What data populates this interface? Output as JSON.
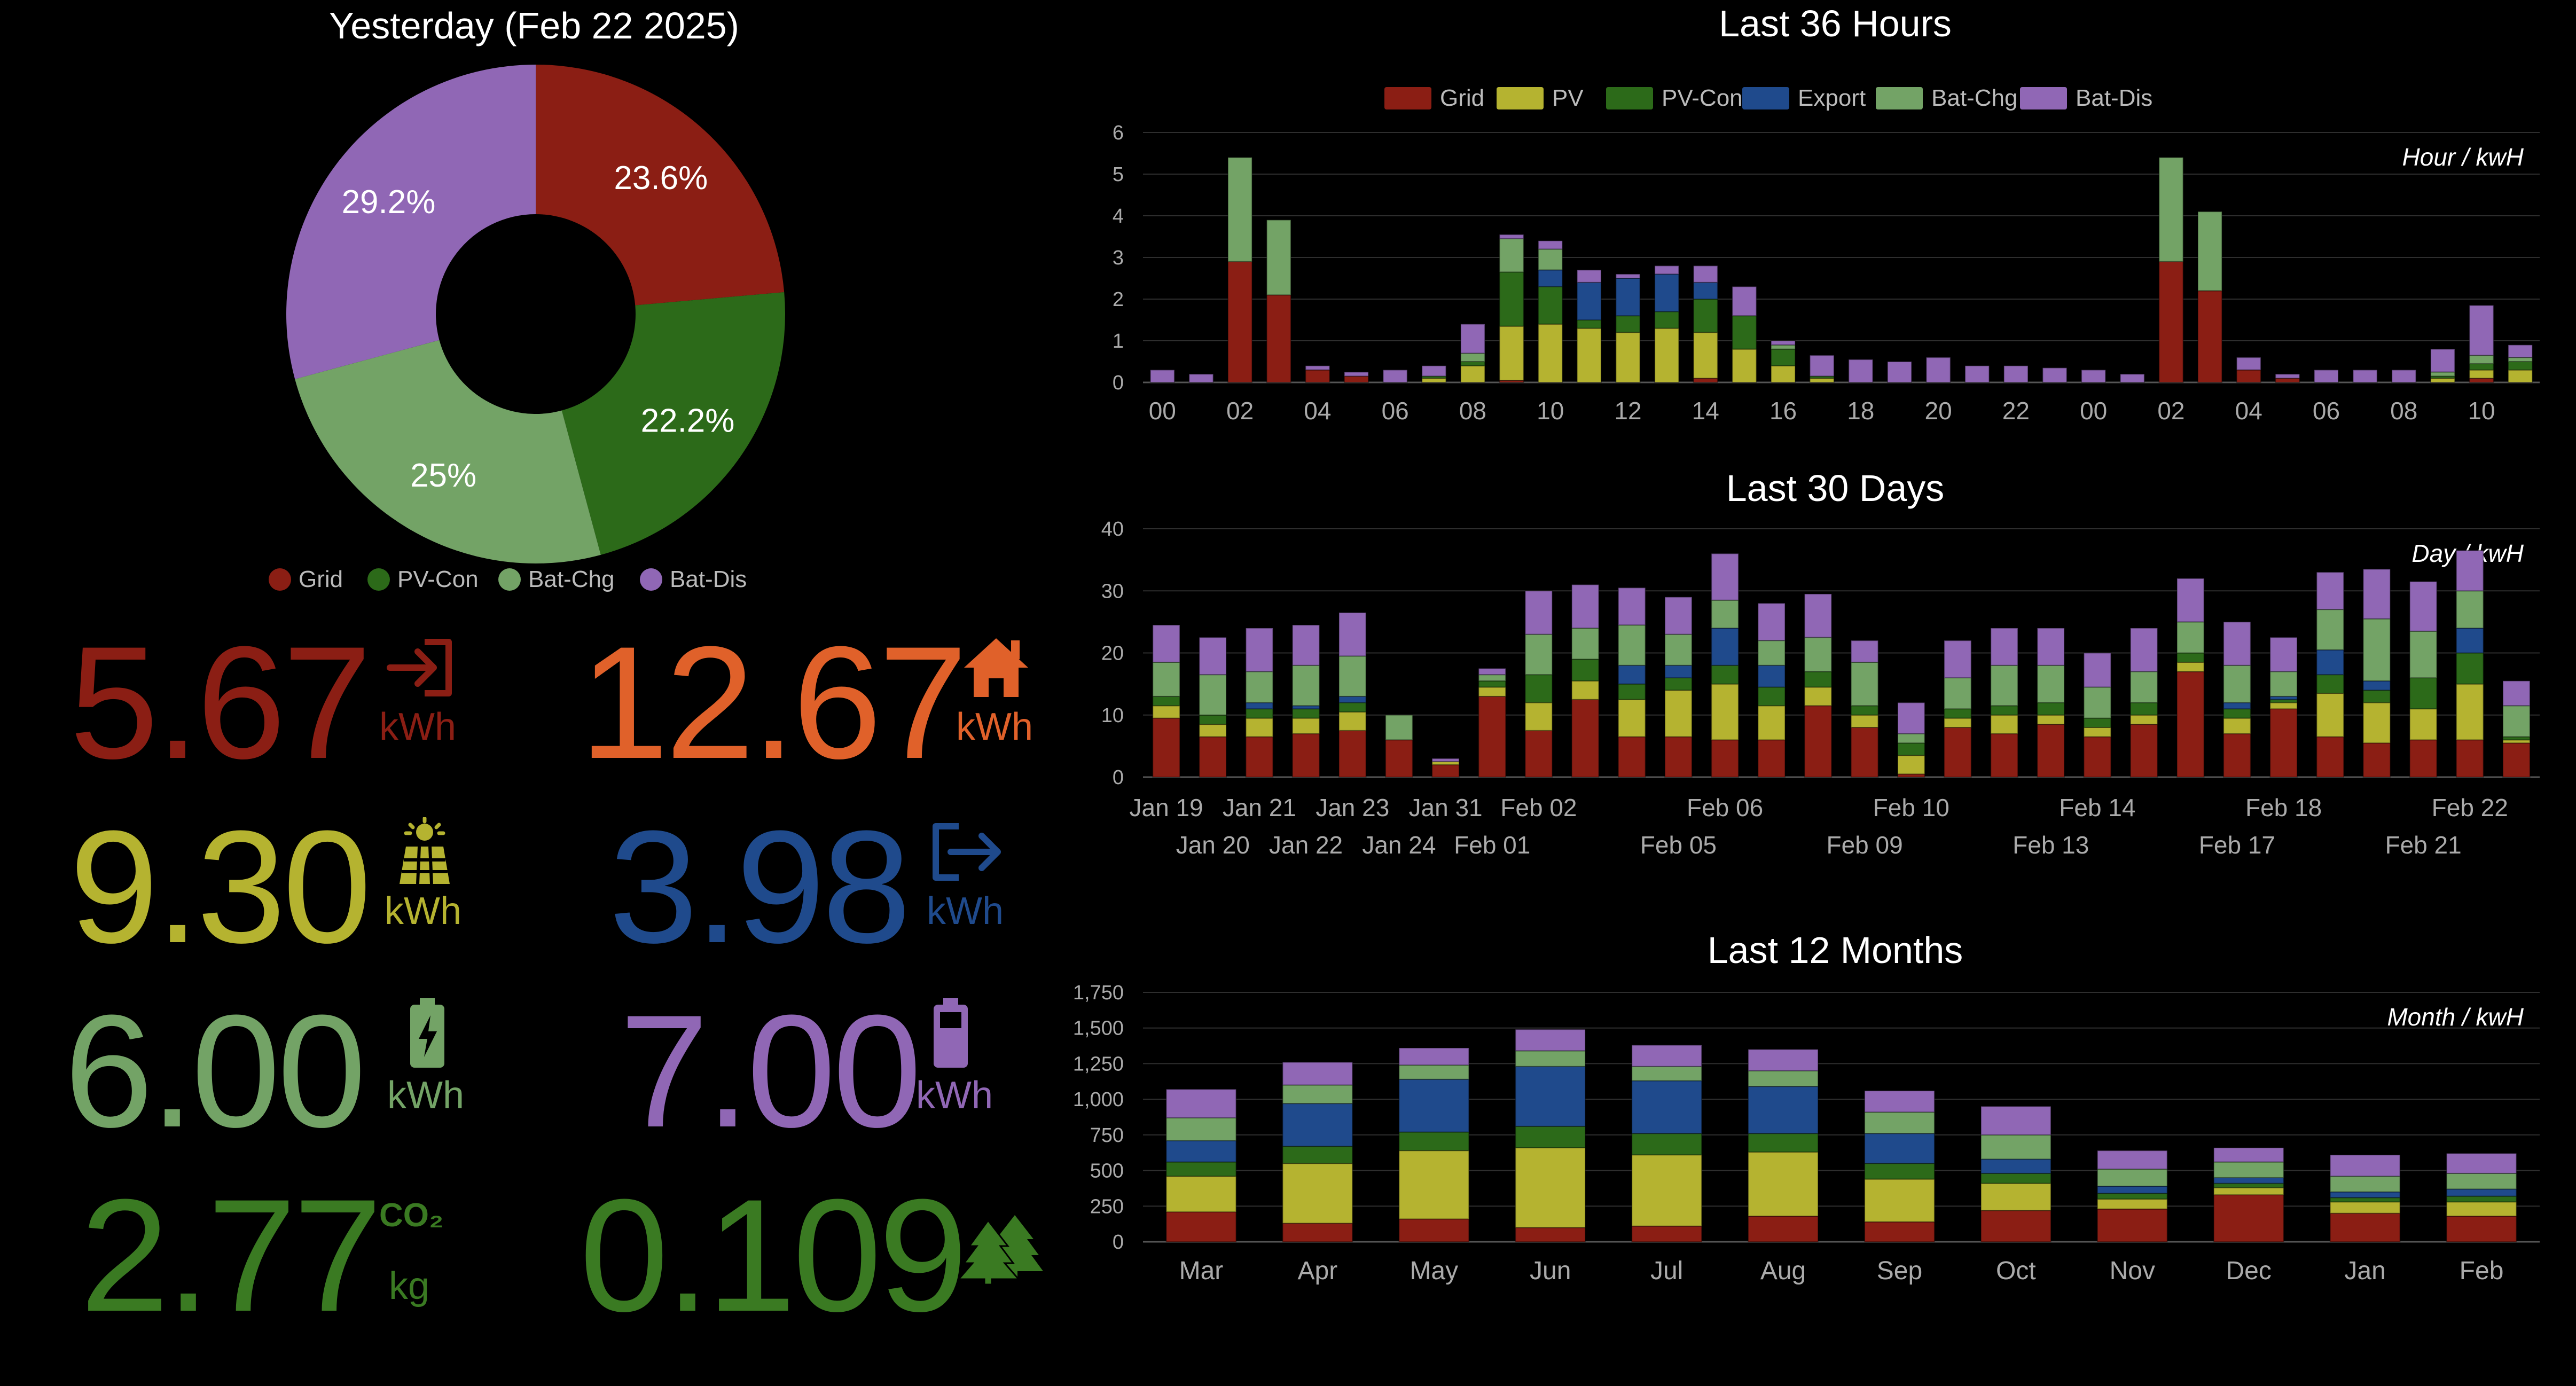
{
  "colors": {
    "grid": "#8B1E14",
    "pv": "#B5B330",
    "pv_con": "#2C6A19",
    "export": "#1F4A8C",
    "bat_chg": "#73A366",
    "bat_dis": "#9067B5",
    "house": "#E0612A",
    "co2": "#3A7A22"
  },
  "donut": {
    "title": "Yesterday (Feb 22 2025)",
    "slices": [
      {
        "name": "Grid",
        "value": 23.6,
        "label": "23.6%",
        "color": "#8B1E14"
      },
      {
        "name": "PV-Con",
        "value": 22.2,
        "label": "22.2%",
        "color": "#2C6A19"
      },
      {
        "name": "Bat-Chg",
        "value": 25.0,
        "label": "25%",
        "color": "#73A366"
      },
      {
        "name": "Bat-Dis",
        "value": 29.2,
        "label": "29.2%",
        "color": "#9067B5"
      }
    ],
    "legend": [
      "Grid",
      "PV-Con",
      "Bat-Chg",
      "Bat-Dis"
    ]
  },
  "stats": {
    "grid": {
      "value": "5.67",
      "unit": "kWh",
      "icon": "grid-import-icon"
    },
    "house": {
      "value": "12.67",
      "unit": "kWh",
      "icon": "house-icon"
    },
    "pv": {
      "value": "9.30",
      "unit": "kWh",
      "icon": "solar-panel-icon"
    },
    "export": {
      "value": "3.98",
      "unit": "kWh",
      "icon": "grid-export-icon"
    },
    "bat_chg": {
      "value": "6.00",
      "unit": "kWh",
      "icon": "battery-charging-icon"
    },
    "bat_dis": {
      "value": "7.00",
      "unit": "kWh",
      "icon": "battery-icon"
    },
    "co2": {
      "value": "2.77",
      "unit": "kg",
      "icon": "co2-icon",
      "icon_text": "CO₂"
    },
    "trees": {
      "value": "0.109",
      "icon": "trees-icon"
    }
  },
  "chart_data": [
    {
      "type": "bar",
      "stacked": true,
      "title": "Last 36 Hours",
      "annotation": "Hour / kwH",
      "legend": [
        "Grid",
        "PV",
        "PV-Con",
        "Export",
        "Bat-Chg",
        "Bat-Dis"
      ],
      "legend_position": "top",
      "ylim": [
        0,
        6
      ],
      "yticks": [
        "0",
        "1",
        "2",
        "3",
        "4",
        "5",
        "6"
      ],
      "tick_labels": [
        "00",
        "02",
        "04",
        "06",
        "08",
        "10",
        "12",
        "14",
        "16",
        "18",
        "20",
        "22",
        "00",
        "02",
        "04",
        "06",
        "08",
        "10"
      ],
      "categories": [
        "00",
        "01",
        "02",
        "03",
        "04",
        "05",
        "06",
        "07",
        "08",
        "09",
        "10",
        "11",
        "12",
        "13",
        "14",
        "15",
        "16",
        "17",
        "18",
        "19",
        "20",
        "21",
        "22",
        "23",
        "00",
        "01",
        "02",
        "03",
        "04",
        "05",
        "06",
        "07",
        "08",
        "09",
        "10",
        "11"
      ],
      "series": [
        {
          "name": "Grid",
          "values": [
            0,
            0,
            2.9,
            2.1,
            0.3,
            0.15,
            0,
            0,
            0,
            0.05,
            0,
            0,
            0,
            0,
            0.1,
            0,
            0,
            0,
            0,
            0,
            0,
            0,
            0,
            0,
            0,
            0,
            2.9,
            2.2,
            0.3,
            0.1,
            0,
            0,
            0,
            0,
            0.1,
            0
          ]
        },
        {
          "name": "PV",
          "values": [
            0,
            0,
            0,
            0,
            0,
            0,
            0,
            0.1,
            0.4,
            1.3,
            1.4,
            1.3,
            1.2,
            1.3,
            1.1,
            0.8,
            0.4,
            0.1,
            0,
            0,
            0,
            0,
            0,
            0,
            0,
            0,
            0,
            0,
            0,
            0,
            0,
            0,
            0,
            0.1,
            0.2,
            0.3
          ]
        },
        {
          "name": "PV-Con",
          "values": [
            0,
            0,
            0,
            0,
            0,
            0,
            0,
            0.05,
            0.1,
            1.3,
            0.9,
            0.2,
            0.4,
            0.4,
            0.8,
            0.8,
            0.4,
            0.05,
            0,
            0,
            0,
            0,
            0,
            0,
            0,
            0,
            0,
            0,
            0,
            0,
            0,
            0,
            0,
            0.05,
            0.15,
            0.2
          ]
        },
        {
          "name": "Export",
          "values": [
            0,
            0,
            0,
            0,
            0,
            0,
            0,
            0,
            0,
            0,
            0.4,
            0.9,
            0.9,
            0.9,
            0.4,
            0,
            0,
            0,
            0,
            0,
            0,
            0,
            0,
            0,
            0,
            0,
            0,
            0,
            0,
            0,
            0,
            0,
            0,
            0,
            0,
            0
          ]
        },
        {
          "name": "Bat-Chg",
          "values": [
            0,
            0,
            2.5,
            1.8,
            0,
            0,
            0,
            0,
            0.2,
            0.8,
            0.5,
            0,
            0,
            0,
            0,
            0,
            0.1,
            0,
            0,
            0,
            0,
            0,
            0,
            0,
            0,
            0,
            2.5,
            1.9,
            0,
            0,
            0,
            0,
            0,
            0.1,
            0.2,
            0.1
          ]
        },
        {
          "name": "Bat-Dis",
          "values": [
            0.3,
            0.2,
            0,
            0,
            0.1,
            0.1,
            0.3,
            0.25,
            0.7,
            0.1,
            0.2,
            0.3,
            0.1,
            0.2,
            0.4,
            0.7,
            0.1,
            0.5,
            0.55,
            0.5,
            0.6,
            0.4,
            0.4,
            0.35,
            0.3,
            0.2,
            0,
            0,
            0.3,
            0.1,
            0.3,
            0.3,
            0.3,
            0.55,
            1.2,
            0.3
          ]
        }
      ]
    },
    {
      "type": "bar",
      "stacked": true,
      "title": "Last 30 Days",
      "annotation": "Day / kwH",
      "ylim": [
        0,
        40
      ],
      "yticks": [
        "0",
        "10",
        "20",
        "30",
        "40"
      ],
      "tick_labels_row1": [
        "Jan 19",
        "Jan 21",
        "Jan 23",
        "Jan 31",
        "Feb 02",
        "Feb 06",
        "Feb 10",
        "Feb 14",
        "Feb 18",
        "Feb 22"
      ],
      "tick_labels_row2": [
        "Jan 20",
        "Jan 22",
        "Jan 24",
        "Feb 01",
        "Feb 05",
        "Feb 09",
        "Feb 13",
        "Feb 17",
        "Feb 21"
      ],
      "categories": [
        "Jan 19",
        "Jan 20",
        "Jan 21",
        "Jan 22",
        "Jan 23",
        "Jan 24",
        "Jan 31",
        "Feb 01",
        "Feb 02",
        "Feb 03",
        "Feb 04",
        "Feb 05",
        "Feb 06",
        "Feb 07",
        "Feb 08",
        "Feb 09",
        "Feb 10",
        "Feb 11",
        "Feb 12",
        "Feb 13",
        "Feb 14",
        "Feb 15",
        "Feb 16",
        "Feb 17",
        "Feb 18",
        "Feb 19",
        "Feb 20",
        "Feb 21",
        "Feb 22",
        "Feb 23"
      ],
      "series": [
        {
          "name": "Grid",
          "values": [
            9.5,
            6.5,
            6.5,
            7,
            7.5,
            6,
            2,
            13,
            7.5,
            12.5,
            6.5,
            6.5,
            6,
            6,
            11.5,
            8,
            0.5,
            8,
            7,
            8.5,
            6.5,
            8.5,
            17,
            7,
            11,
            6.5,
            5.5,
            6,
            6,
            5.5
          ]
        },
        {
          "name": "PV",
          "values": [
            2,
            2,
            3,
            2.5,
            3,
            0,
            0.5,
            1.5,
            4.5,
            3,
            6,
            7.5,
            9,
            5.5,
            3,
            2,
            3,
            1.5,
            3,
            1.5,
            1.5,
            1.5,
            1.5,
            2.5,
            1,
            7,
            6.5,
            5,
            9,
            0.5
          ]
        },
        {
          "name": "PV-Con",
          "values": [
            1.5,
            1.5,
            1.5,
            1.5,
            1.5,
            0,
            0,
            1,
            4.5,
            3.5,
            2.5,
            2,
            3,
            3,
            2.5,
            1.5,
            2,
            1.5,
            1.5,
            2,
            1.5,
            2,
            1.5,
            1.5,
            0.5,
            3,
            2,
            5,
            5,
            0.5
          ]
        },
        {
          "name": "Export",
          "values": [
            0,
            0,
            1,
            0.5,
            1,
            0,
            0,
            0,
            0,
            0,
            3,
            2,
            6,
            3.5,
            0,
            0,
            0,
            0,
            0,
            0,
            0,
            0,
            0,
            1,
            0.5,
            4,
            1.5,
            0,
            4,
            0
          ]
        },
        {
          "name": "Bat-Chg",
          "values": [
            5.5,
            6.5,
            5,
            6.5,
            6.5,
            4,
            0,
            1,
            6.5,
            5,
            6.5,
            5,
            4.5,
            4,
            5.5,
            7,
            1.5,
            5,
            6.5,
            6,
            5,
            5,
            5,
            6,
            4,
            6.5,
            10,
            7.5,
            6,
            5
          ]
        },
        {
          "name": "Bat-Dis",
          "values": [
            6,
            6,
            7,
            6.5,
            7,
            0,
            0.5,
            1,
            7,
            7,
            6,
            6,
            7.5,
            6,
            7,
            3.5,
            5,
            6,
            6,
            6,
            5.5,
            7,
            7,
            7,
            5.5,
            6,
            8,
            8,
            6.5,
            4
          ]
        }
      ]
    },
    {
      "type": "bar",
      "stacked": true,
      "title": "Last 12 Months",
      "annotation": "Month / kwH",
      "ylim": [
        0,
        1750
      ],
      "yticks": [
        "0",
        "250",
        "500",
        "750",
        "1,000",
        "1,250",
        "1,500",
        "1,750"
      ],
      "categories": [
        "Mar",
        "Apr",
        "May",
        "Jun",
        "Jul",
        "Aug",
        "Sep",
        "Oct",
        "Nov",
        "Dec",
        "Jan",
        "Feb"
      ],
      "series": [
        {
          "name": "Grid",
          "values": [
            210,
            130,
            160,
            100,
            110,
            180,
            140,
            220,
            230,
            330,
            200,
            180
          ]
        },
        {
          "name": "PV",
          "values": [
            250,
            420,
            480,
            560,
            500,
            450,
            300,
            190,
            70,
            50,
            80,
            100
          ]
        },
        {
          "name": "PV-Con",
          "values": [
            100,
            120,
            130,
            150,
            150,
            130,
            110,
            70,
            40,
            30,
            30,
            40
          ]
        },
        {
          "name": "Export",
          "values": [
            150,
            300,
            370,
            420,
            370,
            330,
            210,
            100,
            50,
            40,
            40,
            50
          ]
        },
        {
          "name": "Bat-Chg",
          "values": [
            160,
            130,
            100,
            110,
            100,
            110,
            150,
            170,
            120,
            110,
            110,
            110
          ]
        },
        {
          "name": "Bat-Dis",
          "values": [
            200,
            160,
            120,
            150,
            150,
            150,
            150,
            200,
            130,
            100,
            150,
            140
          ]
        }
      ]
    }
  ]
}
